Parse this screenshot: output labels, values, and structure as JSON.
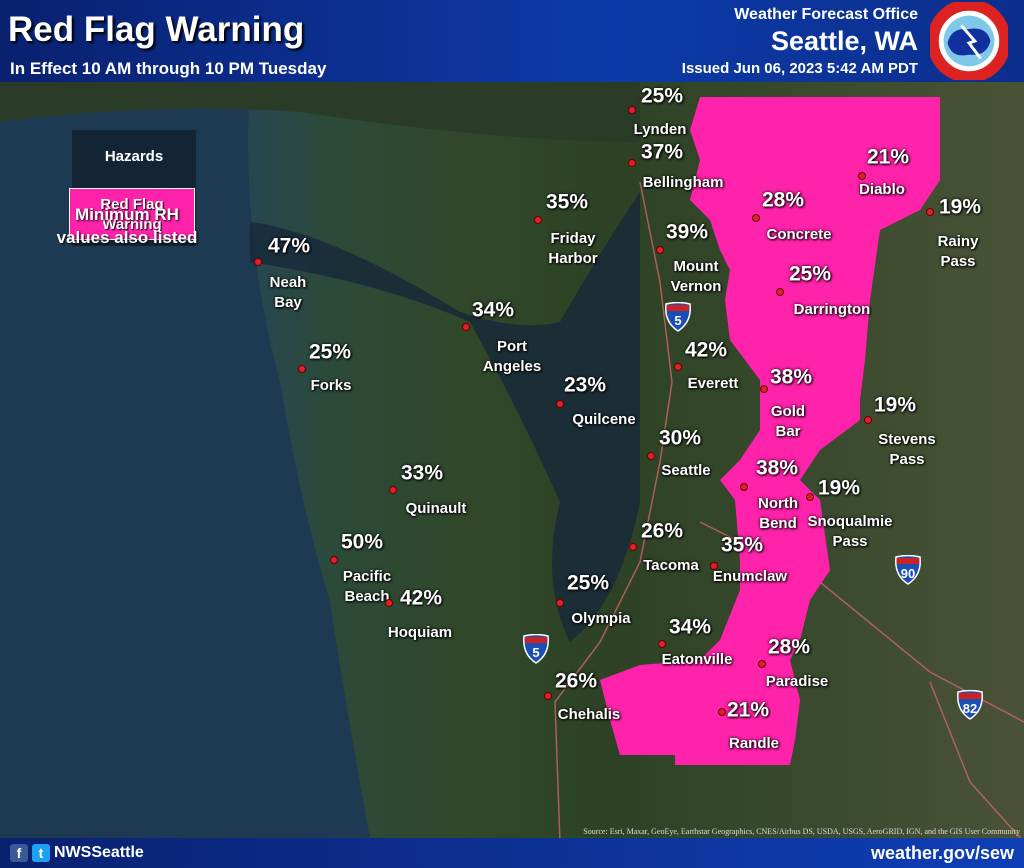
{
  "header": {
    "title": "Red Flag Warning",
    "subtitle": "In Effect 10 AM through 10 PM Tuesday",
    "office": "Weather Forecast Office",
    "city": "Seattle, WA",
    "issued": "Issued Jun 06, 2023 5:42 AM PDT",
    "logo_text": "NATIONAL WEATHER SERVICE"
  },
  "legend": {
    "title": "Hazards",
    "item": "Red Flag Warning",
    "item_color": "#ff22aa"
  },
  "note": "Minimum RH values also listed",
  "locations": [
    {
      "name": "Lynden",
      "rh": "25%"
    },
    {
      "name": "Bellingham",
      "rh": "37%"
    },
    {
      "name": "Friday Harbor",
      "rh": "35%"
    },
    {
      "name": "Diablo",
      "rh": "21%"
    },
    {
      "name": "Concrete",
      "rh": "28%"
    },
    {
      "name": "Rainy Pass",
      "rh": "19%"
    },
    {
      "name": "Mount Vernon",
      "rh": "39%"
    },
    {
      "name": "Darrington",
      "rh": "25%"
    },
    {
      "name": "Neah Bay",
      "rh": "47%"
    },
    {
      "name": "Port Angeles",
      "rh": "34%"
    },
    {
      "name": "Forks",
      "rh": "25%"
    },
    {
      "name": "Everett",
      "rh": "42%"
    },
    {
      "name": "Quilcene",
      "rh": "23%"
    },
    {
      "name": "Gold Bar",
      "rh": "38%"
    },
    {
      "name": "Stevens Pass",
      "rh": "19%"
    },
    {
      "name": "Seattle",
      "rh": "30%"
    },
    {
      "name": "North Bend",
      "rh": "38%"
    },
    {
      "name": "Snoqualmie Pass",
      "rh": "19%"
    },
    {
      "name": "Quinault",
      "rh": "33%"
    },
    {
      "name": "Tacoma",
      "rh": "26%"
    },
    {
      "name": "Enumclaw",
      "rh": "35%"
    },
    {
      "name": "Pacific Beach",
      "rh": "50%"
    },
    {
      "name": "Hoquiam",
      "rh": "42%"
    },
    {
      "name": "Olympia",
      "rh": "25%"
    },
    {
      "name": "Eatonville",
      "rh": "34%"
    },
    {
      "name": "Paradise",
      "rh": "28%"
    },
    {
      "name": "Chehalis",
      "rh": "26%"
    },
    {
      "name": "Randle",
      "rh": "21%"
    }
  ],
  "interstates": [
    "5",
    "5",
    "90",
    "82"
  ],
  "source": "Source: Esri, Maxar, GeoEye, Earthstar Geographics, CNES/Airbus DS, USDA, USGS, AeroGRID, IGN, and the GIS User Community",
  "footer": {
    "social": "NWSSeattle",
    "website": "weather.gov/sew"
  }
}
